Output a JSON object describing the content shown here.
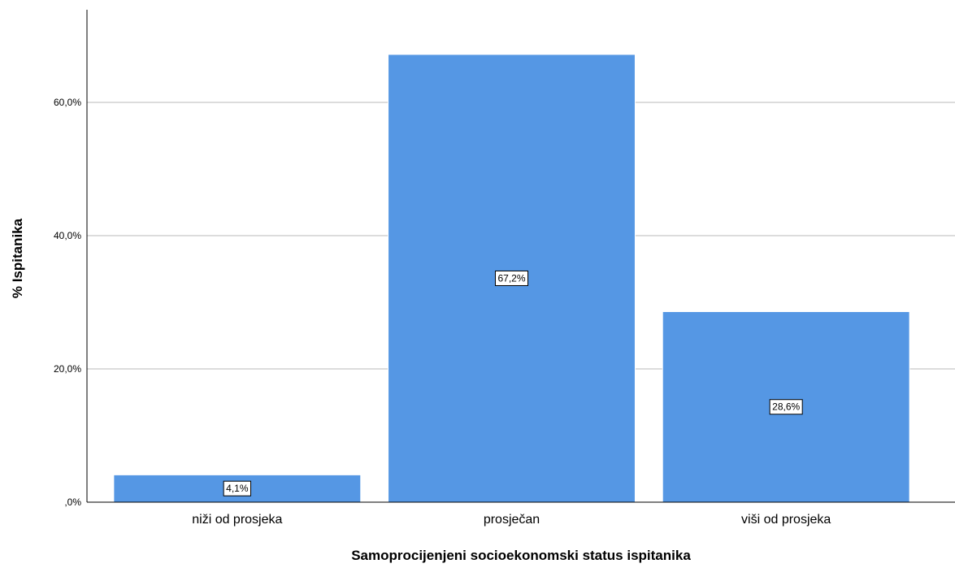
{
  "chart_data": {
    "type": "bar",
    "categories": [
      "niži od prosjeka",
      "prosječan",
      "viši od prosjeka"
    ],
    "values": [
      4.1,
      67.2,
      28.6
    ],
    "data_labels": [
      "4,1%",
      "67,2%",
      "28,6%"
    ],
    "xlabel": "Samoprocijenjeni socioekonomski status ispitanika",
    "ylabel": "% Ispitanika",
    "ylim": [
      0,
      73
    ],
    "yticks": [
      0,
      20,
      40,
      60
    ],
    "ytick_labels": [
      ",0%",
      "20,0%",
      "40,0%",
      "60,0%"
    ],
    "grid": true,
    "legend": "none",
    "colors": {
      "bar": "#5597e4",
      "bar_edge": "#ffffff",
      "grid": "#c8c8c8",
      "axis": "#000000"
    }
  }
}
